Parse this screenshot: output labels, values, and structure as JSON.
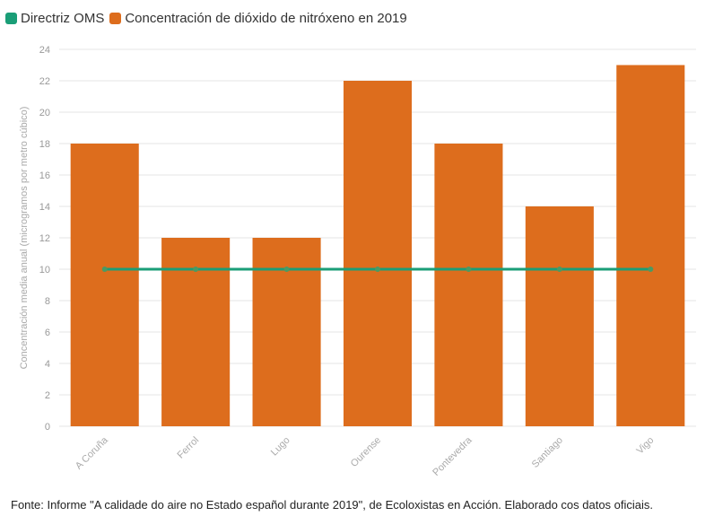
{
  "legend": [
    {
      "label": "Directriz OMS",
      "color": "#1a9e77"
    },
    {
      "label": "Concentración de dióxido de nitróxeno en 2019",
      "color": "#dd6d1d"
    }
  ],
  "footer": "Fonte: Informe \"A calidade do aire no Estado español durante 2019\", de Ecoloxistas en Acción. Elaborado cos datos oficiais.",
  "chart_data": {
    "type": "bar",
    "categories": [
      "A Coruña",
      "Ferrol",
      "Lugo",
      "Ourense",
      "Pontevedra",
      "Santiago",
      "Vigo"
    ],
    "series": [
      {
        "name": "Concentración de dióxido de nitróxeno en 2019",
        "type": "bar",
        "color": "#dd6d1d",
        "values": [
          18,
          12,
          12,
          22,
          18,
          14,
          23
        ]
      },
      {
        "name": "Directriz OMS",
        "type": "line",
        "color": "#1a9e77",
        "values": [
          10,
          10,
          10,
          10,
          10,
          10,
          10
        ]
      }
    ],
    "ylabel": "Concentración media anual (microgramos por metro cúbico)",
    "xlabel": "",
    "ylim": [
      0,
      24
    ],
    "yticks": [
      0,
      2,
      4,
      6,
      8,
      10,
      12,
      14,
      16,
      18,
      20,
      22,
      24
    ],
    "grid": true,
    "legend_position": "top-left"
  }
}
